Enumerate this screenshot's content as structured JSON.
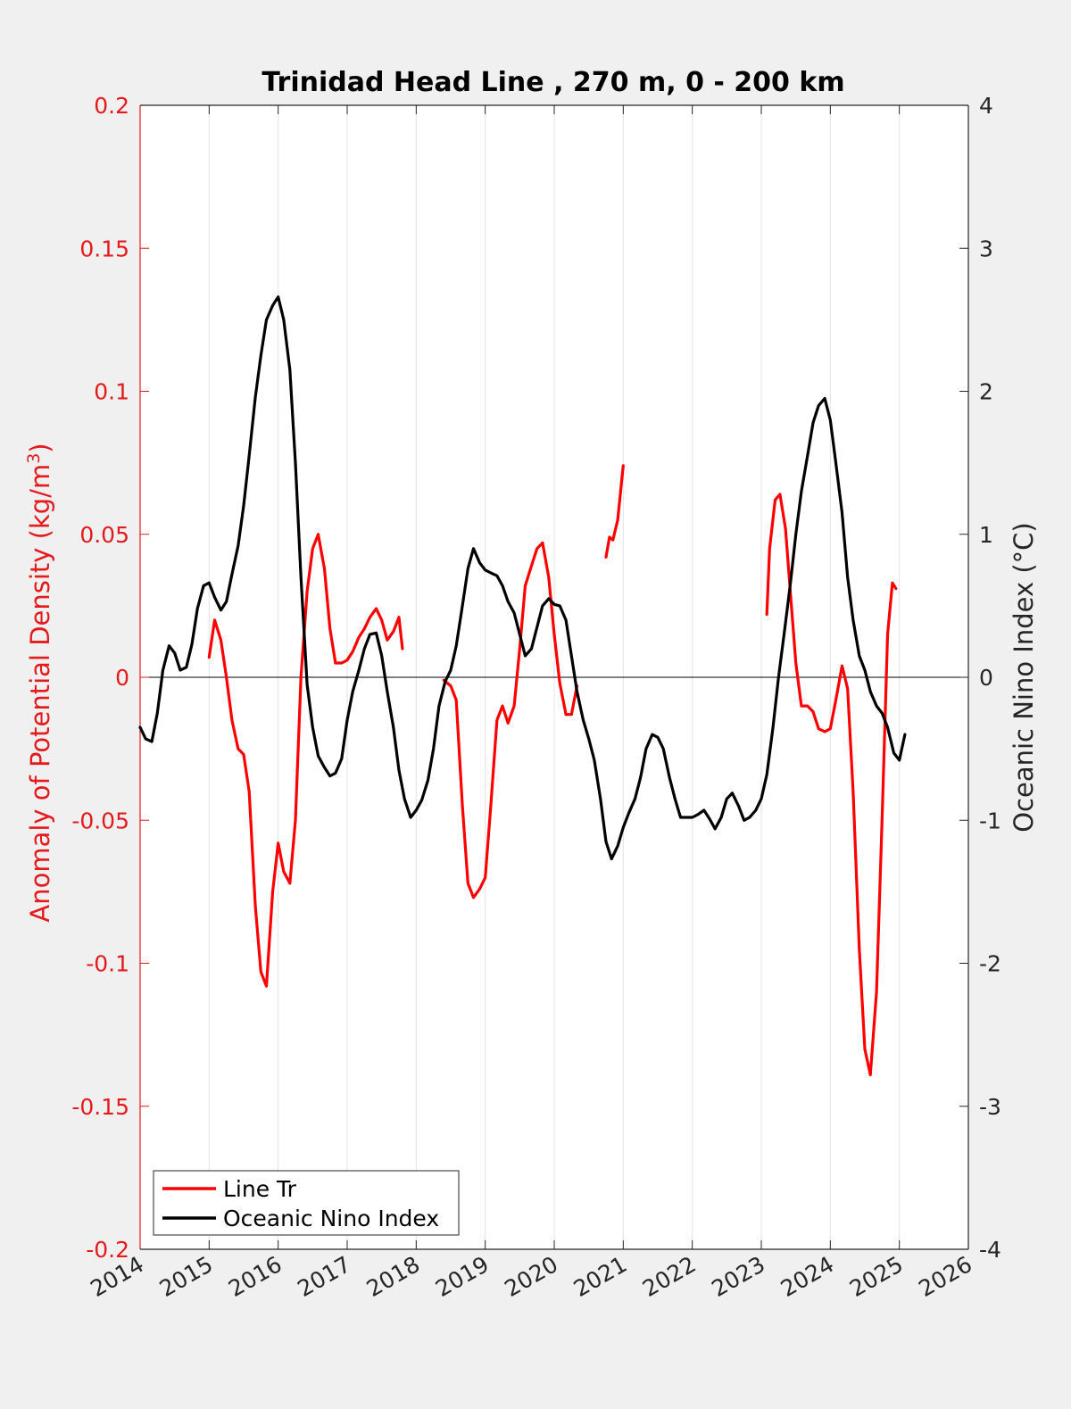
{
  "chart_data": {
    "type": "line",
    "title": "Trinidad Head Line , 270 m, 0 - 200 km",
    "xlim": [
      2014,
      2026
    ],
    "x_ticks": [
      2014,
      2015,
      2016,
      2017,
      2018,
      2019,
      2020,
      2021,
      2022,
      2023,
      2024,
      2025,
      2026
    ],
    "x_tick_labels": [
      "2014",
      "2015",
      "2016",
      "2017",
      "2018",
      "2019",
      "2020",
      "2021",
      "2022",
      "2023",
      "2024",
      "2025",
      "2026"
    ],
    "grid_x": true,
    "zero_line": true,
    "legend_position": "bottom-left",
    "left_axis": {
      "label": "Anomaly of Potential Density (kg/m",
      "label_superscript": "3",
      "label_suffix": ")",
      "color": "#e41a1c",
      "ylim": [
        -0.2,
        0.2
      ],
      "ticks": [
        0.2,
        0.15,
        0.1,
        0.05,
        0,
        -0.05,
        -0.1,
        -0.15,
        -0.2
      ],
      "tick_labels": [
        "0.2",
        "0.15",
        "0.1",
        "0.05",
        "0",
        "-0.05",
        "-0.1",
        "-0.15",
        "-0.2"
      ]
    },
    "right_axis": {
      "label": "Oceanic Nino Index (°C)",
      "color": "#000000",
      "ylim": [
        -4,
        4
      ],
      "ticks": [
        4,
        3,
        2,
        1,
        0,
        -1,
        -2,
        -3,
        -4
      ],
      "tick_labels": [
        "4",
        "3",
        "2",
        "1",
        "0",
        "-1",
        "-2",
        "-3",
        "-4"
      ]
    },
    "series": [
      {
        "name": "Line Tr",
        "axis": "left",
        "color": "#ff0000",
        "segments": [
          [
            [
              2015.0,
              0.007
            ],
            [
              2015.08,
              0.02
            ],
            [
              2015.17,
              0.013
            ],
            [
              2015.25,
              0.0
            ],
            [
              2015.33,
              -0.015
            ],
            [
              2015.42,
              -0.025
            ],
            [
              2015.5,
              -0.027
            ],
            [
              2015.58,
              -0.04
            ],
            [
              2015.67,
              -0.08
            ],
            [
              2015.75,
              -0.103
            ],
            [
              2015.83,
              -0.108
            ],
            [
              2015.92,
              -0.075
            ],
            [
              2016.0,
              -0.058
            ],
            [
              2016.08,
              -0.068
            ],
            [
              2016.17,
              -0.072
            ],
            [
              2016.25,
              -0.05
            ],
            [
              2016.33,
              0.0
            ],
            [
              2016.42,
              0.03
            ],
            [
              2016.5,
              0.045
            ],
            [
              2016.58,
              0.05
            ],
            [
              2016.67,
              0.038
            ],
            [
              2016.75,
              0.017
            ],
            [
              2016.83,
              0.005
            ],
            [
              2016.92,
              0.005
            ],
            [
              2017.0,
              0.006
            ],
            [
              2017.08,
              0.009
            ],
            [
              2017.17,
              0.014
            ],
            [
              2017.25,
              0.017
            ],
            [
              2017.33,
              0.021
            ],
            [
              2017.42,
              0.024
            ],
            [
              2017.5,
              0.02
            ],
            [
              2017.58,
              0.013
            ],
            [
              2017.67,
              0.016
            ],
            [
              2017.75,
              0.021
            ],
            [
              2017.8,
              0.01
            ]
          ],
          [
            [
              2018.4,
              -0.001
            ],
            [
              2018.5,
              -0.003
            ],
            [
              2018.58,
              -0.008
            ],
            [
              2018.67,
              -0.045
            ],
            [
              2018.75,
              -0.072
            ],
            [
              2018.83,
              -0.077
            ],
            [
              2018.92,
              -0.074
            ],
            [
              2019.0,
              -0.07
            ],
            [
              2019.08,
              -0.045
            ],
            [
              2019.17,
              -0.015
            ],
            [
              2019.25,
              -0.01
            ],
            [
              2019.33,
              -0.016
            ],
            [
              2019.42,
              -0.01
            ],
            [
              2019.5,
              0.01
            ],
            [
              2019.58,
              0.032
            ],
            [
              2019.67,
              0.039
            ],
            [
              2019.75,
              0.045
            ],
            [
              2019.83,
              0.047
            ],
            [
              2019.92,
              0.035
            ],
            [
              2020.0,
              0.015
            ],
            [
              2020.08,
              -0.002
            ],
            [
              2020.17,
              -0.013
            ],
            [
              2020.25,
              -0.013
            ],
            [
              2020.33,
              -0.003
            ]
          ],
          [
            [
              2020.75,
              0.042
            ],
            [
              2020.8,
              0.049
            ],
            [
              2020.85,
              0.048
            ],
            [
              2020.92,
              0.055
            ],
            [
              2021.0,
              0.074
            ]
          ],
          [
            [
              2023.08,
              0.022
            ],
            [
              2023.12,
              0.045
            ],
            [
              2023.2,
              0.062
            ],
            [
              2023.27,
              0.064
            ],
            [
              2023.35,
              0.052
            ],
            [
              2023.42,
              0.03
            ],
            [
              2023.5,
              0.005
            ],
            [
              2023.58,
              -0.01
            ],
            [
              2023.67,
              -0.01
            ],
            [
              2023.75,
              -0.012
            ],
            [
              2023.83,
              -0.018
            ],
            [
              2023.92,
              -0.019
            ],
            [
              2024.0,
              -0.018
            ],
            [
              2024.08,
              -0.008
            ],
            [
              2024.17,
              0.004
            ],
            [
              2024.25,
              -0.004
            ],
            [
              2024.33,
              -0.04
            ],
            [
              2024.42,
              -0.095
            ],
            [
              2024.5,
              -0.13
            ],
            [
              2024.58,
              -0.139
            ],
            [
              2024.67,
              -0.11
            ],
            [
              2024.75,
              -0.05
            ],
            [
              2024.83,
              0.015
            ],
            [
              2024.9,
              0.033
            ],
            [
              2024.95,
              0.031
            ]
          ]
        ]
      },
      {
        "name": "Oceanic Nino Index",
        "axis": "right",
        "color": "#000000",
        "segments": [
          [
            [
              2014.0,
              -0.35
            ],
            [
              2014.08,
              -0.43
            ],
            [
              2014.17,
              -0.45
            ],
            [
              2014.25,
              -0.25
            ],
            [
              2014.33,
              0.05
            ],
            [
              2014.42,
              0.22
            ],
            [
              2014.5,
              0.17
            ],
            [
              2014.58,
              0.05
            ],
            [
              2014.67,
              0.07
            ],
            [
              2014.75,
              0.23
            ],
            [
              2014.83,
              0.48
            ],
            [
              2014.92,
              0.64
            ],
            [
              2015.0,
              0.66
            ],
            [
              2015.08,
              0.56
            ],
            [
              2015.17,
              0.47
            ],
            [
              2015.25,
              0.53
            ],
            [
              2015.33,
              0.72
            ],
            [
              2015.42,
              0.92
            ],
            [
              2015.5,
              1.2
            ],
            [
              2015.58,
              1.55
            ],
            [
              2015.67,
              1.96
            ],
            [
              2015.75,
              2.25
            ],
            [
              2015.83,
              2.5
            ],
            [
              2015.92,
              2.6
            ],
            [
              2016.0,
              2.66
            ],
            [
              2016.08,
              2.5
            ],
            [
              2016.17,
              2.15
            ],
            [
              2016.25,
              1.5
            ],
            [
              2016.33,
              0.7
            ],
            [
              2016.42,
              -0.05
            ],
            [
              2016.5,
              -0.35
            ],
            [
              2016.58,
              -0.55
            ],
            [
              2016.67,
              -0.63
            ],
            [
              2016.75,
              -0.69
            ],
            [
              2016.83,
              -0.67
            ],
            [
              2016.92,
              -0.57
            ],
            [
              2017.0,
              -0.3
            ],
            [
              2017.08,
              -0.1
            ],
            [
              2017.17,
              0.05
            ],
            [
              2017.25,
              0.2
            ],
            [
              2017.33,
              0.3
            ],
            [
              2017.42,
              0.31
            ],
            [
              2017.5,
              0.15
            ],
            [
              2017.58,
              -0.1
            ],
            [
              2017.67,
              -0.35
            ],
            [
              2017.75,
              -0.65
            ],
            [
              2017.83,
              -0.85
            ],
            [
              2017.92,
              -0.98
            ],
            [
              2018.0,
              -0.93
            ],
            [
              2018.08,
              -0.86
            ],
            [
              2018.17,
              -0.72
            ],
            [
              2018.25,
              -0.5
            ],
            [
              2018.33,
              -0.2
            ],
            [
              2018.42,
              -0.03
            ],
            [
              2018.5,
              0.05
            ],
            [
              2018.58,
              0.22
            ],
            [
              2018.67,
              0.5
            ],
            [
              2018.75,
              0.76
            ],
            [
              2018.83,
              0.9
            ],
            [
              2018.92,
              0.8
            ],
            [
              2019.0,
              0.75
            ],
            [
              2019.08,
              0.73
            ],
            [
              2019.17,
              0.71
            ],
            [
              2019.25,
              0.64
            ],
            [
              2019.33,
              0.53
            ],
            [
              2019.42,
              0.45
            ],
            [
              2019.5,
              0.3
            ],
            [
              2019.58,
              0.15
            ],
            [
              2019.67,
              0.2
            ],
            [
              2019.75,
              0.35
            ],
            [
              2019.83,
              0.5
            ],
            [
              2019.92,
              0.55
            ],
            [
              2020.0,
              0.51
            ],
            [
              2020.08,
              0.5
            ],
            [
              2020.17,
              0.4
            ],
            [
              2020.25,
              0.15
            ],
            [
              2020.33,
              -0.1
            ],
            [
              2020.42,
              -0.3
            ],
            [
              2020.5,
              -0.43
            ],
            [
              2020.58,
              -0.58
            ],
            [
              2020.67,
              -0.85
            ],
            [
              2020.75,
              -1.15
            ],
            [
              2020.83,
              -1.27
            ],
            [
              2020.92,
              -1.18
            ],
            [
              2021.0,
              -1.05
            ],
            [
              2021.08,
              -0.95
            ],
            [
              2021.17,
              -0.85
            ],
            [
              2021.25,
              -0.7
            ],
            [
              2021.33,
              -0.5
            ],
            [
              2021.42,
              -0.4
            ],
            [
              2021.5,
              -0.42
            ],
            [
              2021.58,
              -0.5
            ],
            [
              2021.67,
              -0.7
            ],
            [
              2021.75,
              -0.85
            ],
            [
              2021.83,
              -0.98
            ],
            [
              2021.92,
              -0.98
            ],
            [
              2022.0,
              -0.98
            ],
            [
              2022.08,
              -0.96
            ],
            [
              2022.17,
              -0.93
            ],
            [
              2022.25,
              -0.99
            ],
            [
              2022.33,
              -1.06
            ],
            [
              2022.42,
              -0.98
            ],
            [
              2022.5,
              -0.85
            ],
            [
              2022.58,
              -0.81
            ],
            [
              2022.67,
              -0.9
            ],
            [
              2022.75,
              -1.0
            ],
            [
              2022.83,
              -0.98
            ],
            [
              2022.92,
              -0.93
            ],
            [
              2023.0,
              -0.85
            ],
            [
              2023.08,
              -0.68
            ],
            [
              2023.17,
              -0.35
            ],
            [
              2023.25,
              0.0
            ],
            [
              2023.33,
              0.3
            ],
            [
              2023.42,
              0.65
            ],
            [
              2023.5,
              1.0
            ],
            [
              2023.58,
              1.3
            ],
            [
              2023.67,
              1.55
            ],
            [
              2023.75,
              1.78
            ],
            [
              2023.83,
              1.9
            ],
            [
              2023.92,
              1.95
            ],
            [
              2024.0,
              1.8
            ],
            [
              2024.08,
              1.5
            ],
            [
              2024.17,
              1.15
            ],
            [
              2024.25,
              0.7
            ],
            [
              2024.33,
              0.4
            ],
            [
              2024.42,
              0.15
            ],
            [
              2024.5,
              0.05
            ],
            [
              2024.58,
              -0.1
            ],
            [
              2024.67,
              -0.2
            ],
            [
              2024.75,
              -0.25
            ],
            [
              2024.83,
              -0.35
            ],
            [
              2024.92,
              -0.53
            ],
            [
              2025.0,
              -0.58
            ],
            [
              2025.08,
              -0.4
            ]
          ]
        ]
      }
    ],
    "legend": [
      "Line Tr",
      "Oceanic Nino Index"
    ]
  }
}
